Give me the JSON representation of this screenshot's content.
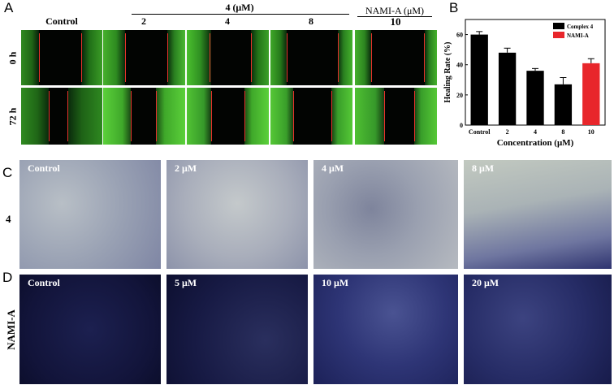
{
  "panelA": {
    "letter": "A",
    "group_header_complex": "4 (μM)",
    "group_header_nami": "NAMI-A (μM)",
    "col_labels": [
      "Control",
      "2",
      "4",
      "8",
      "10"
    ],
    "row_labels": [
      "0 h",
      "72 h"
    ]
  },
  "panelB": {
    "letter": "B",
    "chart_data": {
      "type": "bar",
      "categories": [
        "Control",
        "2",
        "4",
        "8",
        "10"
      ],
      "values": [
        60,
        48,
        36,
        27,
        41
      ],
      "errors": [
        2,
        3,
        1.5,
        4.5,
        3
      ],
      "colors": [
        "#000000",
        "#000000",
        "#000000",
        "#000000",
        "#e8262b"
      ],
      "xlabel": "Concentration (μM)",
      "ylabel": "Healing Rate (%)",
      "ylim": [
        0,
        70
      ],
      "yticks": [
        "0",
        "20",
        "40",
        "60"
      ],
      "legend": [
        {
          "label": "Complex 4",
          "color": "#000000"
        },
        {
          "label": "NAMI-A",
          "color": "#e8262b"
        }
      ],
      "legend_position": "top-right"
    }
  },
  "panelC": {
    "letter": "C",
    "row_label": "4",
    "image_labels": [
      "Control",
      "2 μM",
      "4 μM",
      "8 μM"
    ]
  },
  "panelD": {
    "letter": "D",
    "row_label": "NAMI-A",
    "image_labels": [
      "Control",
      "5 μM",
      "10 μM",
      "20 μM"
    ]
  }
}
